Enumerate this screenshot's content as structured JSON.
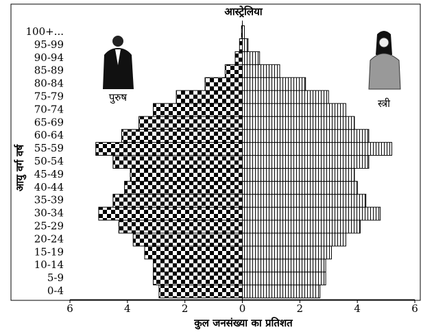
{
  "chart_data": {
    "type": "pyramid",
    "title": "आस्ट्रेलिया",
    "x_label": "कुल जनसंख्या का प्रतिशत",
    "y_label": "आयु वर्ग वर्ष",
    "categories": [
      "0-4",
      "5-9",
      "10-14",
      "15-19",
      "20-24",
      "25-29",
      "30-34",
      "35-39",
      "40-44",
      "45-49",
      "50-54",
      "55-59",
      "60-64",
      "65-69",
      "70-74",
      "75-79",
      "80-84",
      "85-89",
      "90-94",
      "95-99",
      "100+..."
    ],
    "series": [
      {
        "name": "पुरुष",
        "color": "#000000",
        "side": "left",
        "values": [
          2.9,
          3.1,
          3.1,
          3.4,
          3.8,
          4.3,
          5.0,
          4.5,
          4.1,
          3.9,
          4.5,
          5.1,
          4.2,
          3.6,
          3.1,
          2.3,
          1.3,
          0.6,
          0.25,
          0.1,
          0.03
        ]
      },
      {
        "name": "स्त्री",
        "color": "#000000",
        "side": "right",
        "values": [
          2.7,
          2.9,
          2.9,
          3.1,
          3.6,
          4.1,
          4.8,
          4.3,
          4.0,
          3.9,
          4.4,
          5.2,
          4.4,
          3.9,
          3.6,
          3.0,
          2.2,
          1.3,
          0.6,
          0.2,
          0.07
        ]
      }
    ],
    "xlim": [
      -6,
      6
    ],
    "xticks": [
      {
        "value": -6,
        "label": "6"
      },
      {
        "value": -4,
        "label": "4"
      },
      {
        "value": -2,
        "label": "2"
      },
      0,
      2,
      4,
      6
    ]
  }
}
